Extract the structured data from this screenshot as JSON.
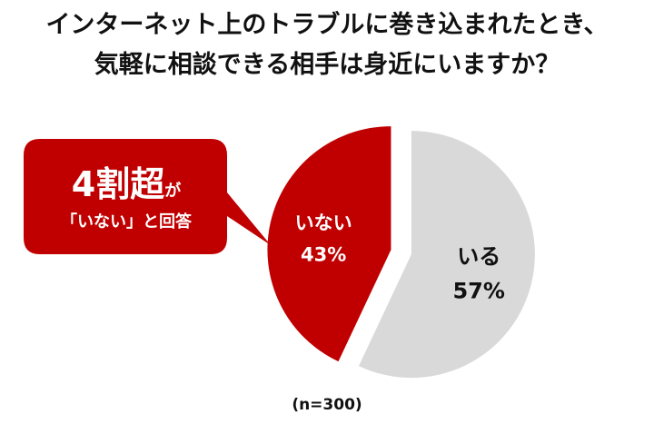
{
  "title": {
    "line1": "インターネット上のトラブルに巻き込まれたとき、",
    "line2": "気軽に相談できる相手は身近にいますか？"
  },
  "callout": {
    "headline_big": "4割超",
    "headline_small": "が",
    "subtext": "「いない」と回答"
  },
  "note": "(n=300)",
  "colors": {
    "red": "#C00000",
    "gray": "#D9D9D9",
    "white": "#FFFFFF"
  },
  "chart_data": {
    "type": "pie",
    "slices": [
      {
        "label": "いる",
        "value": 57,
        "value_label": "57%",
        "color": "#D9D9D9",
        "text_color": "#111111"
      },
      {
        "label": "いない",
        "value": 43,
        "value_label": "43%",
        "color": "#C00000",
        "text_color": "#FFFFFF",
        "exploded": true
      }
    ],
    "start": "12 o'clock",
    "direction": "clockwise"
  }
}
